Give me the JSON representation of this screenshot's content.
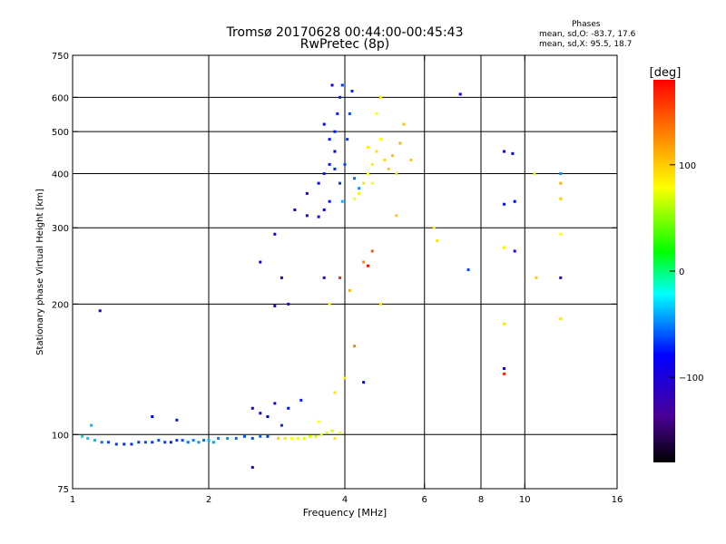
{
  "header": {
    "title": "Tromsø 20170628 00:44:00-00:45:43",
    "subtitle": "RwPretec (8p)",
    "phases_title": "Phases",
    "phases_o": "mean, sd,O: -83.7, 17.6",
    "phases_x": "mean, sd,X:  95.5, 18.7"
  },
  "colorbar": {
    "unit": "[deg]",
    "ticks": [
      {
        "value": 100,
        "label": "100"
      },
      {
        "value": 0,
        "label": "0"
      },
      {
        "value": -100,
        "label": "−100"
      }
    ],
    "min": -180,
    "max": 180
  },
  "chart_data": {
    "type": "scatter",
    "xlabel": "Frequency [MHz]",
    "ylabel": "Stationary phase Virtual Height [km]",
    "x_scale": "log",
    "y_scale": "log",
    "xlim": [
      1,
      16
    ],
    "ylim": [
      75,
      750
    ],
    "x_ticks": [
      {
        "value": 1,
        "label": "1"
      },
      {
        "value": 2,
        "label": "2"
      },
      {
        "value": 4,
        "label": "4"
      },
      {
        "value": 6,
        "label": "6"
      },
      {
        "value": 8,
        "label": "8"
      },
      {
        "value": 10,
        "label": "10"
      },
      {
        "value": 16,
        "label": "16"
      }
    ],
    "y_ticks": [
      {
        "value": 75,
        "label": "75"
      },
      {
        "value": 100,
        "label": "100"
      },
      {
        "value": 200,
        "label": "200"
      },
      {
        "value": 300,
        "label": "300"
      },
      {
        "value": 400,
        "label": "400"
      },
      {
        "value": 500,
        "label": "500"
      },
      {
        "value": 600,
        "label": "600"
      },
      {
        "value": 750,
        "label": "750"
      }
    ],
    "x_grid": [
      2,
      4,
      6,
      8,
      10
    ],
    "y_grid": [
      100,
      200,
      300,
      400,
      500,
      600
    ],
    "grid": true,
    "series": [
      {
        "color_by": "phase_deg",
        "points": [
          [
            1.05,
            99,
            -40
          ],
          [
            1.08,
            98,
            -45
          ],
          [
            1.12,
            97,
            -50
          ],
          [
            1.16,
            96,
            -70
          ],
          [
            1.2,
            96,
            -80
          ],
          [
            1.25,
            95,
            -85
          ],
          [
            1.3,
            95,
            -90
          ],
          [
            1.35,
            95,
            -88
          ],
          [
            1.4,
            96,
            -85
          ],
          [
            1.45,
            96,
            -80
          ],
          [
            1.5,
            96,
            -85
          ],
          [
            1.55,
            97,
            -80
          ],
          [
            1.6,
            96,
            -85
          ],
          [
            1.65,
            96,
            -90
          ],
          [
            1.7,
            97,
            -85
          ],
          [
            1.75,
            97,
            -80
          ],
          [
            1.8,
            96,
            -70
          ],
          [
            1.85,
            97,
            -65
          ],
          [
            1.9,
            96,
            -60
          ],
          [
            1.95,
            97,
            -70
          ],
          [
            2.0,
            97,
            -50
          ],
          [
            2.05,
            96,
            -55
          ],
          [
            2.1,
            98,
            -65
          ],
          [
            2.2,
            98,
            -60
          ],
          [
            2.3,
            98,
            -70
          ],
          [
            2.4,
            99,
            -75
          ],
          [
            2.5,
            98,
            -80
          ],
          [
            2.6,
            99,
            -70
          ],
          [
            2.7,
            99,
            -85
          ],
          [
            1.1,
            105,
            -50
          ],
          [
            1.5,
            110,
            -100
          ],
          [
            1.7,
            108,
            -95
          ],
          [
            2.5,
            115,
            -110
          ],
          [
            2.6,
            112,
            -105
          ],
          [
            2.7,
            110,
            -100
          ],
          [
            2.8,
            118,
            -115
          ],
          [
            2.9,
            105,
            -90
          ],
          [
            1.15,
            193,
            -110
          ],
          [
            2.5,
            84,
            -120
          ],
          [
            2.85,
            98,
            120
          ],
          [
            2.95,
            98,
            110
          ],
          [
            3.05,
            98,
            100
          ],
          [
            3.15,
            98,
            95
          ],
          [
            3.25,
            98,
            90
          ],
          [
            3.35,
            99,
            85
          ],
          [
            3.45,
            99,
            80
          ],
          [
            3.55,
            100,
            85
          ],
          [
            3.65,
            101,
            90
          ],
          [
            3.75,
            102,
            80
          ],
          [
            3.8,
            98,
            110
          ],
          [
            3.9,
            101,
            100
          ],
          [
            3.0,
            115,
            -95
          ],
          [
            3.2,
            120,
            -90
          ],
          [
            3.5,
            107,
            100
          ],
          [
            3.8,
            125,
            110
          ],
          [
            4.0,
            135,
            110
          ],
          [
            2.6,
            250,
            -110
          ],
          [
            2.8,
            290,
            -110
          ],
          [
            2.9,
            230,
            -120
          ],
          [
            2.8,
            198,
            -130
          ],
          [
            3.0,
            200,
            -130
          ],
          [
            3.1,
            330,
            -110
          ],
          [
            3.3,
            320,
            -120
          ],
          [
            3.5,
            318,
            -115
          ],
          [
            3.6,
            330,
            -100
          ],
          [
            3.7,
            345,
            -95
          ],
          [
            3.3,
            360,
            -110
          ],
          [
            3.5,
            380,
            -100
          ],
          [
            3.6,
            400,
            -90
          ],
          [
            3.7,
            420,
            -95
          ],
          [
            3.8,
            450,
            -100
          ],
          [
            3.8,
            500,
            -95
          ],
          [
            3.85,
            550,
            -90
          ],
          [
            3.9,
            600,
            -90
          ],
          [
            3.75,
            640,
            -110
          ],
          [
            3.95,
            640,
            -85
          ],
          [
            3.6,
            520,
            -100
          ],
          [
            3.7,
            480,
            -95
          ],
          [
            3.8,
            410,
            -90
          ],
          [
            3.9,
            380,
            -85
          ],
          [
            4.0,
            420,
            -80
          ],
          [
            4.05,
            480,
            -85
          ],
          [
            4.1,
            550,
            -80
          ],
          [
            4.15,
            620,
            -90
          ],
          [
            4.2,
            390,
            -70
          ],
          [
            4.3,
            370,
            -60
          ],
          [
            3.95,
            345,
            -50
          ],
          [
            4.2,
            350,
            100
          ],
          [
            4.3,
            360,
            105
          ],
          [
            4.4,
            380,
            110
          ],
          [
            4.5,
            400,
            100
          ],
          [
            4.6,
            420,
            105
          ],
          [
            4.7,
            450,
            110
          ],
          [
            4.8,
            480,
            100
          ],
          [
            4.9,
            430,
            115
          ],
          [
            5.0,
            410,
            120
          ],
          [
            5.1,
            440,
            125
          ],
          [
            5.3,
            470,
            130
          ],
          [
            5.4,
            520,
            125
          ],
          [
            4.5,
            460,
            105
          ],
          [
            4.7,
            550,
            100
          ],
          [
            4.8,
            600,
            110
          ],
          [
            4.6,
            380,
            95
          ],
          [
            5.6,
            430,
            120
          ],
          [
            5.2,
            400,
            110
          ],
          [
            6.4,
            280,
            110
          ],
          [
            6.3,
            300,
            105
          ],
          [
            7.2,
            610,
            -100
          ],
          [
            7.5,
            240,
            -80
          ],
          [
            9.0,
            450,
            -110
          ],
          [
            9.4,
            445,
            -100
          ],
          [
            9.0,
            340,
            -95
          ],
          [
            9.5,
            345,
            -100
          ],
          [
            9.0,
            270,
            105
          ],
          [
            9.0,
            180,
            110
          ],
          [
            9.0,
            142,
            -110
          ],
          [
            9.0,
            138,
            170
          ],
          [
            10.5,
            400,
            90
          ],
          [
            10.6,
            230,
            120
          ],
          [
            12.0,
            400,
            -60
          ],
          [
            12.0,
            380,
            130
          ],
          [
            12.0,
            350,
            120
          ],
          [
            12.0,
            290,
            100
          ],
          [
            12.0,
            230,
            -120
          ],
          [
            12.0,
            185,
            110
          ],
          [
            9.5,
            265,
            -110
          ],
          [
            4.4,
            250,
            150
          ],
          [
            4.5,
            245,
            175
          ],
          [
            4.6,
            265,
            160
          ],
          [
            3.9,
            230,
            170
          ],
          [
            4.1,
            215,
            130
          ],
          [
            3.7,
            200,
            100
          ],
          [
            3.6,
            230,
            -120
          ],
          [
            5.2,
            320,
            120
          ],
          [
            4.8,
            200,
            110
          ],
          [
            4.2,
            160,
            150
          ],
          [
            4.4,
            132,
            -100
          ]
        ]
      }
    ]
  }
}
